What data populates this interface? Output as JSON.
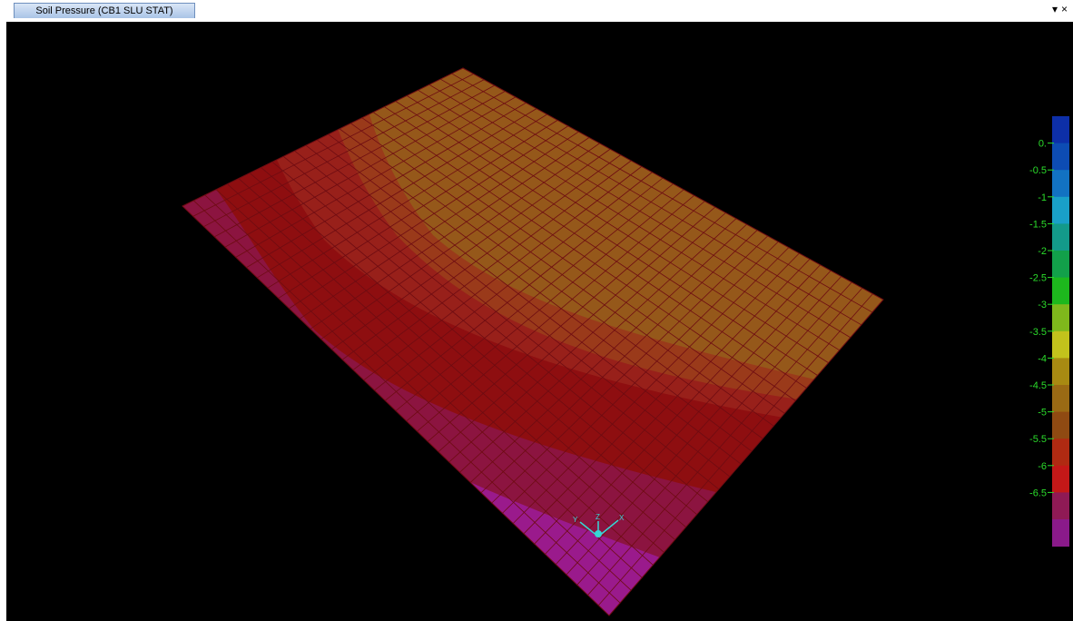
{
  "tab": {
    "title": "Soil Pressure  (CB1 SLU STAT)"
  },
  "window_controls": {
    "dropdown": "▾",
    "close": "×"
  },
  "triad": {
    "x": "X",
    "y": "Y",
    "z": "Z"
  },
  "legend": {
    "labels": [
      "0.",
      "-0.5",
      "-1",
      "-1.5",
      "-2",
      "-2.5",
      "-3",
      "-3.5",
      "-4",
      "-4.5",
      "-5",
      "-5.5",
      "-6",
      "-6.5"
    ],
    "colors": [
      "#0d2fa8",
      "#0d4cb3",
      "#1272c2",
      "#19a0c8",
      "#139a8a",
      "#12a04a",
      "#1db81d",
      "#7fb81c",
      "#c2c21c",
      "#a88a12",
      "#9a6a14",
      "#8f4a12",
      "#b02a12",
      "#c41818",
      "#8f1a55",
      "#8a1a8a"
    ]
  },
  "plate_colors": {
    "band1": "#9a1a8c",
    "band2": "#8c1440",
    "band3": "#8e0e10",
    "band4": "#98201a",
    "band5": "#9a3a1a",
    "band6": "#95581a",
    "mesh": "#6e0c12"
  }
}
